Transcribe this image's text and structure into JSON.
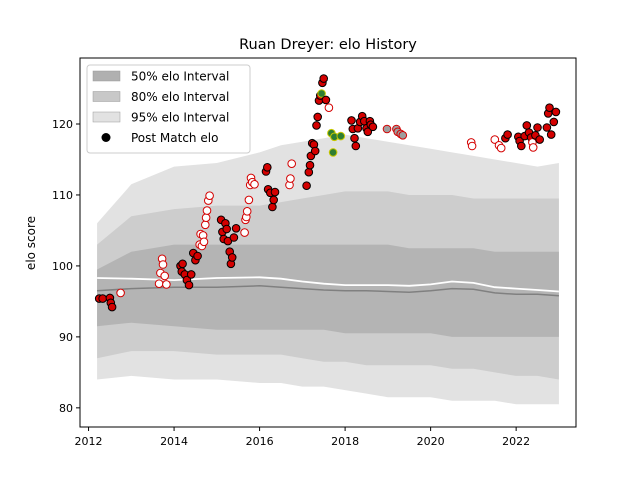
{
  "chart_data": {
    "type": "scatter",
    "title": "Ruan Dreyer: elo History",
    "xlabel": "",
    "ylabel": "elo score",
    "xlim": [
      2011.8,
      2023.4
    ],
    "ylim": [
      77.3,
      129.3
    ],
    "x_ticks": [
      2012,
      2014,
      2016,
      2018,
      2020,
      2022
    ],
    "y_ticks": [
      80,
      90,
      100,
      110,
      120
    ],
    "grid": false,
    "legend_position": "top-left",
    "legend": [
      {
        "label": "50% elo Interval",
        "kind": "band",
        "color": "#b0b0b0"
      },
      {
        "label": "80% elo Interval",
        "kind": "band",
        "color": "#c8c8c8"
      },
      {
        "label": "95% elo Interval",
        "kind": "band",
        "color": "#e2e2e2"
      },
      {
        "label": "Post Match elo",
        "kind": "marker",
        "color": "#000000"
      }
    ],
    "colors": {
      "band95": "#e2e2e2",
      "band80": "#cdcdcd",
      "band50": "#b4b4b4",
      "median_line": "#808080",
      "mean_line": "#ffffff",
      "win_fill": "#d40000",
      "loss_fill": "#ffffff",
      "loss_edge": "#d40000",
      "green_fill": "#2e7d32",
      "green_edge": "#c8c800",
      "grey_fill": "#9e9e9e"
    },
    "band_x": [
      2012.2,
      2013.0,
      2014.0,
      2015.0,
      2016.0,
      2016.5,
      2017.0,
      2017.5,
      2018.0,
      2018.5,
      2019.0,
      2019.5,
      2020.0,
      2020.5,
      2021.0,
      2021.5,
      2022.0,
      2022.5,
      2023.0
    ],
    "band95_upper": [
      106.0,
      111.5,
      114.0,
      114.5,
      116.0,
      117.0,
      117.5,
      118.0,
      118.5,
      118.0,
      117.5,
      117.0,
      116.5,
      116.0,
      115.5,
      115.0,
      114.5,
      114.0,
      114.5
    ],
    "band95_lower": [
      84.0,
      84.5,
      84.0,
      84.0,
      83.5,
      83.5,
      83.0,
      83.0,
      82.5,
      82.0,
      81.5,
      81.5,
      81.5,
      81.0,
      81.0,
      81.0,
      80.5,
      80.5,
      80.5
    ],
    "band80_upper": [
      103.0,
      107.0,
      108.0,
      108.5,
      108.5,
      109.0,
      109.5,
      110.0,
      110.5,
      110.5,
      110.5,
      110.0,
      110.0,
      110.0,
      109.5,
      109.5,
      109.5,
      109.5,
      109.5
    ],
    "band80_lower": [
      87.0,
      88.0,
      88.0,
      87.5,
      87.5,
      87.5,
      87.0,
      86.5,
      86.5,
      86.0,
      86.0,
      86.0,
      86.0,
      85.5,
      85.5,
      85.0,
      84.5,
      84.5,
      84.0
    ],
    "band50_upper": [
      99.5,
      102.0,
      103.0,
      103.0,
      103.0,
      103.0,
      103.0,
      103.0,
      103.0,
      103.0,
      103.0,
      102.5,
      102.5,
      102.5,
      102.5,
      102.0,
      102.0,
      102.0,
      102.0
    ],
    "band50_lower": [
      91.5,
      92.0,
      91.5,
      91.0,
      91.0,
      91.0,
      91.0,
      91.0,
      90.5,
      90.5,
      90.5,
      90.5,
      90.5,
      90.0,
      90.0,
      90.0,
      90.0,
      90.0,
      90.0
    ],
    "median_line": [
      96.5,
      96.8,
      97.0,
      97.0,
      97.2,
      97.0,
      96.8,
      96.6,
      96.5,
      96.5,
      96.4,
      96.3,
      96.5,
      96.8,
      96.7,
      96.2,
      96.0,
      96.0,
      95.8
    ],
    "mean_line": [
      98.3,
      98.2,
      98.0,
      98.3,
      98.4,
      98.2,
      97.8,
      97.5,
      97.3,
      97.3,
      97.3,
      97.2,
      97.4,
      97.8,
      97.6,
      97.0,
      96.8,
      96.6,
      96.4
    ],
    "series": [
      {
        "name": "Post Match elo",
        "points": [
          {
            "x": 2012.25,
            "y": 95.4,
            "kind": "win"
          },
          {
            "x": 2012.33,
            "y": 95.4,
            "kind": "win"
          },
          {
            "x": 2012.5,
            "y": 95.5,
            "kind": "win"
          },
          {
            "x": 2012.52,
            "y": 94.8,
            "kind": "win"
          },
          {
            "x": 2012.55,
            "y": 94.2,
            "kind": "win"
          },
          {
            "x": 2012.75,
            "y": 96.2,
            "kind": "loss"
          },
          {
            "x": 2013.65,
            "y": 97.5,
            "kind": "loss"
          },
          {
            "x": 2013.68,
            "y": 99.0,
            "kind": "loss"
          },
          {
            "x": 2013.72,
            "y": 101.0,
            "kind": "loss"
          },
          {
            "x": 2013.74,
            "y": 100.2,
            "kind": "loss"
          },
          {
            "x": 2013.78,
            "y": 98.6,
            "kind": "loss"
          },
          {
            "x": 2013.82,
            "y": 97.4,
            "kind": "loss"
          },
          {
            "x": 2014.15,
            "y": 100.0,
            "kind": "win"
          },
          {
            "x": 2014.18,
            "y": 99.2,
            "kind": "win"
          },
          {
            "x": 2014.2,
            "y": 100.3,
            "kind": "win"
          },
          {
            "x": 2014.25,
            "y": 98.8,
            "kind": "win"
          },
          {
            "x": 2014.3,
            "y": 98.0,
            "kind": "win"
          },
          {
            "x": 2014.35,
            "y": 97.3,
            "kind": "win"
          },
          {
            "x": 2014.4,
            "y": 98.8,
            "kind": "win"
          },
          {
            "x": 2014.45,
            "y": 101.8,
            "kind": "win"
          },
          {
            "x": 2014.5,
            "y": 100.8,
            "kind": "win"
          },
          {
            "x": 2014.55,
            "y": 101.4,
            "kind": "win"
          },
          {
            "x": 2014.6,
            "y": 103.0,
            "kind": "loss"
          },
          {
            "x": 2014.62,
            "y": 104.5,
            "kind": "loss"
          },
          {
            "x": 2014.65,
            "y": 102.8,
            "kind": "loss"
          },
          {
            "x": 2014.68,
            "y": 104.3,
            "kind": "loss"
          },
          {
            "x": 2014.7,
            "y": 103.4,
            "kind": "loss"
          },
          {
            "x": 2014.73,
            "y": 105.8,
            "kind": "loss"
          },
          {
            "x": 2014.75,
            "y": 106.8,
            "kind": "loss"
          },
          {
            "x": 2014.77,
            "y": 107.8,
            "kind": "loss"
          },
          {
            "x": 2014.8,
            "y": 109.2,
            "kind": "loss"
          },
          {
            "x": 2014.83,
            "y": 109.9,
            "kind": "loss"
          },
          {
            "x": 2015.1,
            "y": 106.5,
            "kind": "win"
          },
          {
            "x": 2015.13,
            "y": 104.8,
            "kind": "win"
          },
          {
            "x": 2015.16,
            "y": 103.8,
            "kind": "win"
          },
          {
            "x": 2015.2,
            "y": 106.0,
            "kind": "win"
          },
          {
            "x": 2015.23,
            "y": 105.2,
            "kind": "win"
          },
          {
            "x": 2015.26,
            "y": 103.5,
            "kind": "win"
          },
          {
            "x": 2015.3,
            "y": 102.0,
            "kind": "win"
          },
          {
            "x": 2015.33,
            "y": 100.3,
            "kind": "win"
          },
          {
            "x": 2015.36,
            "y": 101.2,
            "kind": "win"
          },
          {
            "x": 2015.4,
            "y": 104.0,
            "kind": "win"
          },
          {
            "x": 2015.45,
            "y": 105.3,
            "kind": "win"
          },
          {
            "x": 2015.65,
            "y": 104.7,
            "kind": "loss"
          },
          {
            "x": 2015.67,
            "y": 106.5,
            "kind": "loss"
          },
          {
            "x": 2015.69,
            "y": 106.9,
            "kind": "loss"
          },
          {
            "x": 2015.71,
            "y": 107.7,
            "kind": "loss"
          },
          {
            "x": 2015.75,
            "y": 109.3,
            "kind": "loss"
          },
          {
            "x": 2015.78,
            "y": 111.4,
            "kind": "loss"
          },
          {
            "x": 2015.8,
            "y": 112.4,
            "kind": "loss"
          },
          {
            "x": 2015.83,
            "y": 111.8,
            "kind": "loss"
          },
          {
            "x": 2015.88,
            "y": 111.5,
            "kind": "loss"
          },
          {
            "x": 2016.15,
            "y": 113.3,
            "kind": "win"
          },
          {
            "x": 2016.18,
            "y": 113.9,
            "kind": "win"
          },
          {
            "x": 2016.2,
            "y": 110.8,
            "kind": "win"
          },
          {
            "x": 2016.25,
            "y": 110.3,
            "kind": "win"
          },
          {
            "x": 2016.3,
            "y": 108.3,
            "kind": "win"
          },
          {
            "x": 2016.33,
            "y": 109.3,
            "kind": "win"
          },
          {
            "x": 2016.36,
            "y": 110.4,
            "kind": "win"
          },
          {
            "x": 2016.7,
            "y": 111.4,
            "kind": "loss"
          },
          {
            "x": 2016.72,
            "y": 112.3,
            "kind": "loss"
          },
          {
            "x": 2016.75,
            "y": 114.4,
            "kind": "loss"
          },
          {
            "x": 2017.1,
            "y": 111.3,
            "kind": "win"
          },
          {
            "x": 2017.15,
            "y": 113.2,
            "kind": "win"
          },
          {
            "x": 2017.18,
            "y": 114.2,
            "kind": "win"
          },
          {
            "x": 2017.2,
            "y": 115.5,
            "kind": "win"
          },
          {
            "x": 2017.23,
            "y": 117.3,
            "kind": "win"
          },
          {
            "x": 2017.27,
            "y": 117.1,
            "kind": "win"
          },
          {
            "x": 2017.3,
            "y": 116.2,
            "kind": "win"
          },
          {
            "x": 2017.33,
            "y": 119.8,
            "kind": "win"
          },
          {
            "x": 2017.36,
            "y": 121.0,
            "kind": "win"
          },
          {
            "x": 2017.39,
            "y": 123.3,
            "kind": "win"
          },
          {
            "x": 2017.42,
            "y": 124.0,
            "kind": "win"
          },
          {
            "x": 2017.45,
            "y": 124.3,
            "kind": "green"
          },
          {
            "x": 2017.47,
            "y": 125.8,
            "kind": "win"
          },
          {
            "x": 2017.5,
            "y": 126.4,
            "kind": "win"
          },
          {
            "x": 2017.55,
            "y": 123.4,
            "kind": "win"
          },
          {
            "x": 2017.62,
            "y": 122.3,
            "kind": "loss"
          },
          {
            "x": 2017.68,
            "y": 118.7,
            "kind": "green"
          },
          {
            "x": 2017.72,
            "y": 116.0,
            "kind": "green"
          },
          {
            "x": 2017.75,
            "y": 118.2,
            "kind": "green"
          },
          {
            "x": 2017.9,
            "y": 118.3,
            "kind": "green"
          },
          {
            "x": 2018.15,
            "y": 120.5,
            "kind": "win"
          },
          {
            "x": 2018.18,
            "y": 119.3,
            "kind": "win"
          },
          {
            "x": 2018.22,
            "y": 118.0,
            "kind": "win"
          },
          {
            "x": 2018.25,
            "y": 116.9,
            "kind": "win"
          },
          {
            "x": 2018.3,
            "y": 119.4,
            "kind": "win"
          },
          {
            "x": 2018.35,
            "y": 120.3,
            "kind": "win"
          },
          {
            "x": 2018.4,
            "y": 121.1,
            "kind": "win"
          },
          {
            "x": 2018.45,
            "y": 120.4,
            "kind": "win"
          },
          {
            "x": 2018.5,
            "y": 119.4,
            "kind": "win"
          },
          {
            "x": 2018.53,
            "y": 118.9,
            "kind": "win"
          },
          {
            "x": 2018.58,
            "y": 120.4,
            "kind": "win"
          },
          {
            "x": 2018.6,
            "y": 119.9,
            "kind": "win"
          },
          {
            "x": 2018.65,
            "y": 119.6,
            "kind": "win"
          },
          {
            "x": 2018.98,
            "y": 119.3,
            "kind": "grey"
          },
          {
            "x": 2019.2,
            "y": 119.3,
            "kind": "grey"
          },
          {
            "x": 2019.23,
            "y": 118.9,
            "kind": "grey"
          },
          {
            "x": 2019.3,
            "y": 118.6,
            "kind": "grey"
          },
          {
            "x": 2019.35,
            "y": 118.4,
            "kind": "grey"
          },
          {
            "x": 2020.95,
            "y": 117.4,
            "kind": "loss"
          },
          {
            "x": 2020.97,
            "y": 116.9,
            "kind": "loss"
          },
          {
            "x": 2021.5,
            "y": 117.8,
            "kind": "loss"
          },
          {
            "x": 2021.6,
            "y": 117.0,
            "kind": "loss"
          },
          {
            "x": 2021.65,
            "y": 116.6,
            "kind": "loss"
          },
          {
            "x": 2021.75,
            "y": 118.0,
            "kind": "win"
          },
          {
            "x": 2021.8,
            "y": 118.5,
            "kind": "win"
          },
          {
            "x": 2022.05,
            "y": 118.2,
            "kind": "win"
          },
          {
            "x": 2022.08,
            "y": 117.6,
            "kind": "win"
          },
          {
            "x": 2022.12,
            "y": 116.9,
            "kind": "win"
          },
          {
            "x": 2022.2,
            "y": 118.3,
            "kind": "win"
          },
          {
            "x": 2022.25,
            "y": 119.8,
            "kind": "win"
          },
          {
            "x": 2022.3,
            "y": 118.8,
            "kind": "win"
          },
          {
            "x": 2022.35,
            "y": 118.1,
            "kind": "win"
          },
          {
            "x": 2022.38,
            "y": 117.4,
            "kind": "loss"
          },
          {
            "x": 2022.4,
            "y": 116.7,
            "kind": "loss"
          },
          {
            "x": 2022.45,
            "y": 118.4,
            "kind": "win"
          },
          {
            "x": 2022.5,
            "y": 119.5,
            "kind": "win"
          },
          {
            "x": 2022.55,
            "y": 117.8,
            "kind": "win"
          },
          {
            "x": 2022.72,
            "y": 119.5,
            "kind": "win"
          },
          {
            "x": 2022.75,
            "y": 121.5,
            "kind": "win"
          },
          {
            "x": 2022.78,
            "y": 122.3,
            "kind": "win"
          },
          {
            "x": 2022.82,
            "y": 118.5,
            "kind": "win"
          },
          {
            "x": 2022.88,
            "y": 120.3,
            "kind": "win"
          },
          {
            "x": 2022.93,
            "y": 121.7,
            "kind": "win"
          }
        ]
      }
    ]
  }
}
